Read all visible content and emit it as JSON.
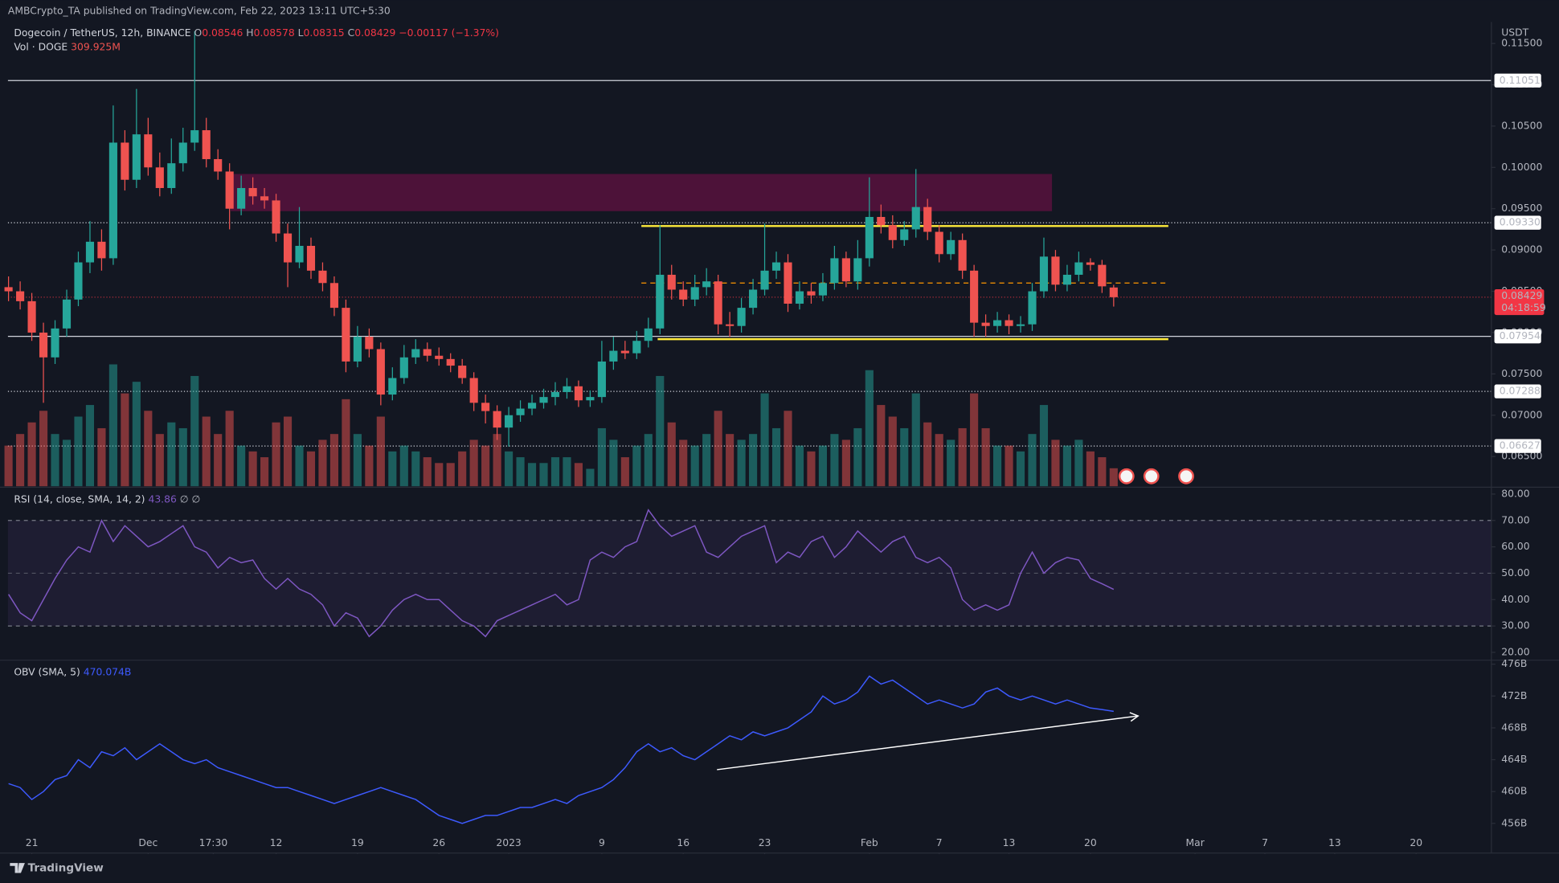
{
  "header": {
    "text": "AMBCrypto_TA published on TradingView.com, Feb 22, 2023 13:11 UTC+5:30"
  },
  "footer": {
    "brand": "TradingView"
  },
  "chart_data": [
    {
      "type": "candlestick",
      "title": "Dogecoin / TetherUS, 12h, BINANCE",
      "ohlc_legend": [
        {
          "label": "O",
          "text": "0.08546"
        },
        {
          "label": "H",
          "text": "0.08578"
        },
        {
          "label": "L",
          "text": "0.08315"
        },
        {
          "label": "C",
          "text": "0.08429"
        }
      ],
      "change_text": "−0.00117 (−1.37%)",
      "volume_title": "Vol · DOGE",
      "volume_label": "309.925M",
      "currency": "USDT",
      "up_color": "#26a69a",
      "down_color": "#ef5350",
      "x": [
        -2,
        -1,
        0,
        1,
        2,
        3,
        4,
        5,
        6,
        7,
        8,
        9,
        10,
        11,
        12,
        13,
        14,
        15,
        16,
        17,
        18,
        19,
        20,
        21,
        22,
        23,
        24,
        25,
        26,
        27,
        28,
        29,
        30,
        31,
        32,
        33,
        34,
        35,
        36,
        37,
        38,
        39,
        40,
        41,
        42,
        43,
        44,
        45,
        46,
        47,
        48,
        49,
        50,
        51,
        52,
        53,
        54,
        55,
        56,
        57,
        58,
        59,
        60,
        61,
        62,
        63,
        64,
        65,
        66,
        67,
        68,
        69,
        70,
        71,
        72,
        73,
        74,
        75,
        76,
        77,
        78,
        79,
        80,
        81,
        82,
        83,
        84,
        85,
        86,
        87,
        88,
        89,
        90,
        91,
        92,
        93
      ],
      "open": [
        0.0855,
        0.085,
        0.0838,
        0.08,
        0.077,
        0.0805,
        0.084,
        0.0885,
        0.091,
        0.089,
        0.103,
        0.0985,
        0.104,
        0.1,
        0.0975,
        0.1005,
        0.103,
        0.1045,
        0.101,
        0.0995,
        0.095,
        0.0975,
        0.0965,
        0.096,
        0.092,
        0.0885,
        0.0905,
        0.0875,
        0.086,
        0.083,
        0.0765,
        0.0795,
        0.078,
        0.0725,
        0.0745,
        0.077,
        0.078,
        0.0772,
        0.0768,
        0.076,
        0.0745,
        0.0715,
        0.0705,
        0.0685,
        0.07,
        0.0708,
        0.0715,
        0.0722,
        0.0728,
        0.0735,
        0.0718,
        0.0722,
        0.0765,
        0.0778,
        0.0775,
        0.079,
        0.0805,
        0.087,
        0.0852,
        0.084,
        0.0855,
        0.0862,
        0.081,
        0.0808,
        0.083,
        0.0852,
        0.0875,
        0.0885,
        0.0835,
        0.085,
        0.0845,
        0.086,
        0.089,
        0.0862,
        0.089,
        0.094,
        0.093,
        0.0912,
        0.0925,
        0.0952,
        0.0922,
        0.0895,
        0.0912,
        0.0875,
        0.0812,
        0.0808,
        0.0815,
        0.0808,
        0.081,
        0.085,
        0.0892,
        0.0858,
        0.087,
        0.0885,
        0.0882,
        0.08546
      ],
      "high": [
        0.0868,
        0.0862,
        0.0848,
        0.0812,
        0.0815,
        0.0852,
        0.0898,
        0.0935,
        0.0925,
        0.1075,
        0.1045,
        0.1095,
        0.106,
        0.1018,
        0.1035,
        0.1048,
        0.1165,
        0.106,
        0.1022,
        0.1005,
        0.099,
        0.0988,
        0.0975,
        0.0968,
        0.0932,
        0.0952,
        0.0915,
        0.0885,
        0.0868,
        0.084,
        0.0808,
        0.0805,
        0.0788,
        0.0758,
        0.0785,
        0.0792,
        0.0788,
        0.0782,
        0.0775,
        0.0768,
        0.0752,
        0.0725,
        0.0712,
        0.071,
        0.0718,
        0.0725,
        0.0732,
        0.074,
        0.0745,
        0.0742,
        0.073,
        0.079,
        0.0795,
        0.079,
        0.0802,
        0.0818,
        0.093,
        0.0882,
        0.0862,
        0.087,
        0.0878,
        0.087,
        0.0825,
        0.0842,
        0.0865,
        0.0932,
        0.0898,
        0.0895,
        0.0862,
        0.086,
        0.0872,
        0.0905,
        0.0898,
        0.0912,
        0.0988,
        0.0955,
        0.0942,
        0.0935,
        0.0998,
        0.0962,
        0.093,
        0.0922,
        0.092,
        0.0882,
        0.0822,
        0.0825,
        0.0822,
        0.082,
        0.086,
        0.0915,
        0.09,
        0.0882,
        0.0898,
        0.089,
        0.0888,
        0.08578
      ],
      "low": [
        0.0838,
        0.0828,
        0.079,
        0.0715,
        0.0762,
        0.0795,
        0.0832,
        0.0872,
        0.0875,
        0.0882,
        0.0972,
        0.0975,
        0.099,
        0.0965,
        0.0968,
        0.0995,
        0.102,
        0.1,
        0.0985,
        0.0925,
        0.0942,
        0.0955,
        0.095,
        0.091,
        0.0855,
        0.0878,
        0.0865,
        0.085,
        0.082,
        0.0752,
        0.0758,
        0.077,
        0.0712,
        0.0718,
        0.0738,
        0.0762,
        0.0765,
        0.076,
        0.0752,
        0.0738,
        0.0705,
        0.069,
        0.067,
        0.0662,
        0.0692,
        0.07,
        0.0708,
        0.0712,
        0.072,
        0.071,
        0.071,
        0.0715,
        0.0755,
        0.0768,
        0.0768,
        0.0782,
        0.0798,
        0.084,
        0.0832,
        0.0832,
        0.0845,
        0.0798,
        0.0795,
        0.08,
        0.0822,
        0.0845,
        0.0865,
        0.0825,
        0.0828,
        0.0835,
        0.0838,
        0.0852,
        0.0855,
        0.0852,
        0.088,
        0.092,
        0.0902,
        0.0905,
        0.0915,
        0.0912,
        0.0885,
        0.0888,
        0.0865,
        0.0795,
        0.0795,
        0.08,
        0.0798,
        0.08,
        0.0802,
        0.0842,
        0.085,
        0.085,
        0.0862,
        0.0875,
        0.0848,
        0.08315
      ],
      "close": [
        0.085,
        0.0838,
        0.08,
        0.077,
        0.0805,
        0.084,
        0.0885,
        0.091,
        0.089,
        0.103,
        0.0985,
        0.104,
        0.1,
        0.0975,
        0.1005,
        0.103,
        0.1045,
        0.101,
        0.0995,
        0.095,
        0.0975,
        0.0965,
        0.096,
        0.092,
        0.0885,
        0.0905,
        0.0875,
        0.086,
        0.083,
        0.0765,
        0.0795,
        0.078,
        0.0725,
        0.0745,
        0.077,
        0.078,
        0.0772,
        0.0768,
        0.076,
        0.0745,
        0.0715,
        0.0705,
        0.0685,
        0.07,
        0.0708,
        0.0715,
        0.0722,
        0.0728,
        0.0735,
        0.0718,
        0.0722,
        0.0765,
        0.0778,
        0.0775,
        0.079,
        0.0805,
        0.087,
        0.0852,
        0.084,
        0.0855,
        0.0862,
        0.081,
        0.0808,
        0.083,
        0.0852,
        0.0875,
        0.0885,
        0.0835,
        0.085,
        0.0845,
        0.086,
        0.089,
        0.0862,
        0.089,
        0.094,
        0.093,
        0.0912,
        0.0925,
        0.0952,
        0.0922,
        0.0895,
        0.0912,
        0.0875,
        0.0812,
        0.0808,
        0.0815,
        0.0808,
        0.081,
        0.085,
        0.0892,
        0.0858,
        0.087,
        0.0885,
        0.0882,
        0.0856,
        0.08429
      ],
      "volume": [
        700,
        900,
        1100,
        1300,
        900,
        800,
        1200,
        1400,
        1000,
        2100,
        1600,
        1800,
        1300,
        900,
        1100,
        1000,
        1900,
        1200,
        900,
        1300,
        700,
        600,
        500,
        1100,
        1200,
        700,
        600,
        800,
        900,
        1500,
        900,
        700,
        1200,
        600,
        700,
        600,
        500,
        400,
        400,
        600,
        800,
        700,
        900,
        600,
        500,
        400,
        400,
        500,
        500,
        400,
        300,
        1000,
        800,
        500,
        700,
        900,
        1900,
        1100,
        800,
        700,
        900,
        1300,
        900,
        800,
        900,
        1600,
        1000,
        1300,
        700,
        600,
        700,
        900,
        800,
        1000,
        2000,
        1400,
        1200,
        1000,
        1600,
        1100,
        900,
        800,
        1000,
        1600,
        1000,
        700,
        700,
        600,
        900,
        1400,
        800,
        700,
        800,
        600,
        500,
        309.925
      ],
      "volume_ylim": [
        0,
        8000
      ],
      "xlim": [
        -2.05,
        125.47
      ],
      "xticks": [
        {
          "value": 0,
          "label": "21"
        },
        {
          "value": 10,
          "label": "Dec"
        },
        {
          "value": 15.6,
          "label": "17:30"
        },
        {
          "value": 21,
          "label": "12"
        },
        {
          "value": 28,
          "label": "19"
        },
        {
          "value": 35,
          "label": "26"
        },
        {
          "value": 41,
          "label": "2023"
        },
        {
          "value": 49,
          "label": "9"
        },
        {
          "value": 56,
          "label": "16"
        },
        {
          "value": 63,
          "label": "23"
        },
        {
          "value": 72,
          "label": "Feb"
        },
        {
          "value": 78,
          "label": "7"
        },
        {
          "value": 84,
          "label": "13"
        },
        {
          "value": 91,
          "label": "20"
        },
        {
          "value": 100,
          "label": "Mar"
        },
        {
          "value": 106,
          "label": "7"
        },
        {
          "value": 112,
          "label": "13"
        },
        {
          "value": 119,
          "label": "20"
        }
      ],
      "ylim": [
        0.0614,
        0.1176
      ],
      "yticks": [
        {
          "value": 0.065,
          "label": "0.06500"
        },
        {
          "value": 0.07,
          "label": "0.07000"
        },
        {
          "value": 0.075,
          "label": "0.07500"
        },
        {
          "value": 0.08,
          "label": "0.08000"
        },
        {
          "value": 0.085,
          "label": "0.08500"
        },
        {
          "value": 0.09,
          "label": "0.09000"
        },
        {
          "value": 0.095,
          "label": "0.09500"
        },
        {
          "value": 0.1,
          "label": "0.10000"
        },
        {
          "value": 0.105,
          "label": "0.10500"
        },
        {
          "value": 0.11,
          "label": "0.11000"
        },
        {
          "value": 0.115,
          "label": "0.11500"
        }
      ],
      "grid": false,
      "levels": [
        {
          "value": 0.11051,
          "label": "0.11051",
          "style": "solid"
        },
        {
          "value": 0.0933,
          "label": "0.09330",
          "style": "dotted"
        },
        {
          "value": 0.07954,
          "label": "0.07954",
          "style": "solid"
        },
        {
          "value": 0.07288,
          "label": "0.07288",
          "style": "dotted"
        },
        {
          "value": 0.06627,
          "label": "0.06627",
          "style": "dotted"
        }
      ],
      "last_price": {
        "value": 0.08429,
        "label": "0.08429",
        "countdown": "04:18:59",
        "color": "#f23645"
      },
      "zone": {
        "x": [
          17.1,
          87.7
        ],
        "y": [
          0.0947,
          0.0992
        ],
        "color": "rgba(136,14,79,0.5)"
      },
      "range_lines": [
        {
          "x": [
            52.4,
            97.7
          ],
          "y": 0.0929
        },
        {
          "x": [
            53.8,
            97.7
          ],
          "y": 0.0792
        }
      ],
      "range_color": "#ffeb3b",
      "mid_line": {
        "x": [
          52.4,
          97.7
        ],
        "y": 0.086,
        "color": "#ff9800"
      }
    },
    {
      "type": "line",
      "title": "RSI (14, close, SMA, 14, 2)",
      "extra": "∅ ∅",
      "color": "#7e57c2",
      "values": [
        42,
        35,
        32,
        40,
        48,
        55,
        60,
        58,
        70,
        62,
        68,
        64,
        60,
        62,
        65,
        68,
        60,
        58,
        52,
        56,
        54,
        55,
        48,
        44,
        48,
        44,
        42,
        38,
        30,
        35,
        33,
        26,
        30,
        36,
        40,
        42,
        40,
        40,
        36,
        32,
        30,
        26,
        32,
        34,
        36,
        38,
        40,
        42,
        38,
        40,
        55,
        58,
        56,
        60,
        62,
        74,
        68,
        64,
        66,
        68,
        58,
        56,
        60,
        64,
        66,
        68,
        54,
        58,
        56,
        62,
        64,
        56,
        60,
        66,
        62,
        58,
        62,
        64,
        56,
        54,
        56,
        52,
        40,
        36,
        38,
        36,
        38,
        50,
        58,
        50,
        54,
        56,
        55,
        48,
        46,
        43.86
      ],
      "ylim": [
        17.4,
        82.6
      ],
      "yticks": [
        {
          "value": 20,
          "label": "20.00"
        },
        {
          "value": 30,
          "label": "30.00"
        },
        {
          "value": 40,
          "label": "40.00"
        },
        {
          "value": 50,
          "label": "50.00"
        },
        {
          "value": 60,
          "label": "60.00"
        },
        {
          "value": 70,
          "label": "70.00"
        },
        {
          "value": 80,
          "label": "80.00"
        }
      ],
      "band": [
        30,
        70
      ],
      "midline": 50
    },
    {
      "type": "line",
      "title": "OBV (SMA, 5)",
      "value_label": "470.074B",
      "color": "#3d5afe",
      "values": [
        461,
        460.5,
        459,
        460,
        461.5,
        462,
        464,
        463,
        465,
        464.5,
        465.5,
        464,
        465,
        466,
        465,
        464,
        463.5,
        464,
        463,
        462.5,
        462,
        461.5,
        461,
        460.5,
        460.5,
        460,
        459.5,
        459,
        458.5,
        459,
        459.5,
        460,
        460.5,
        460,
        459.5,
        459,
        458,
        457,
        456.5,
        456,
        456.5,
        457,
        457,
        457.5,
        458,
        458,
        458.5,
        459,
        458.5,
        459.5,
        460,
        460.5,
        461.5,
        463,
        465,
        466,
        465,
        465.5,
        464.5,
        464,
        465,
        466,
        467,
        466.5,
        467.5,
        467,
        467.5,
        468,
        469,
        470,
        472,
        471,
        471.5,
        472.5,
        474.5,
        473.5,
        474,
        473,
        472,
        471,
        471.5,
        471,
        470.5,
        471,
        472.5,
        473,
        472,
        471.5,
        472,
        471.5,
        471,
        471.5,
        471,
        470.5,
        470.3,
        470.074
      ],
      "ylim": [
        452.4,
        476.5
      ],
      "yticks": [
        {
          "value": 456,
          "label": "456B"
        },
        {
          "value": 460,
          "label": "460B"
        },
        {
          "value": 464,
          "label": "464B"
        },
        {
          "value": 468,
          "label": "468B"
        },
        {
          "value": 472,
          "label": "472B"
        },
        {
          "value": 476,
          "label": "476B"
        }
      ],
      "trend_line": {
        "x": [
          58.9,
          95.1
        ],
        "y": [
          462.75,
          469.5
        ],
        "color": "#ffffff"
      }
    }
  ]
}
